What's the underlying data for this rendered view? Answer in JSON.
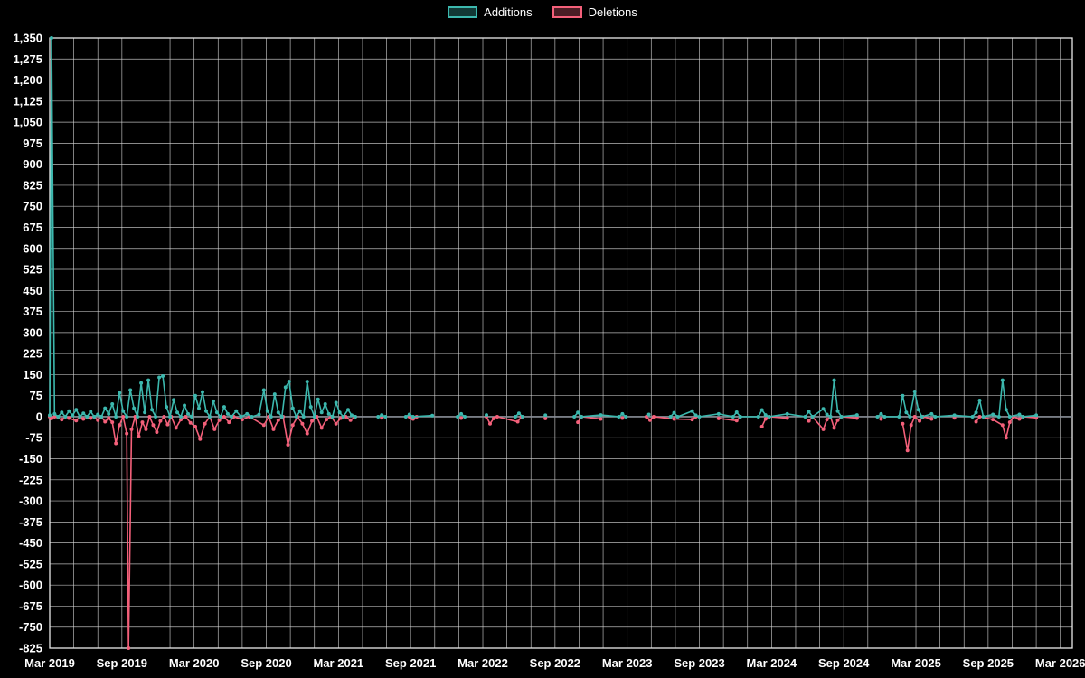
{
  "legend": {
    "additions_label": "Additions",
    "deletions_label": "Deletions"
  },
  "colors": {
    "background": "#000000",
    "grid": "#d7d7d7",
    "border": "#e9e9e9",
    "zero_axis": "#8a8f98",
    "text": "#ffffff",
    "additions": "#3cb8ae",
    "deletions": "#f4607a"
  },
  "chart_data": {
    "type": "line",
    "title": "",
    "xlabel": "",
    "ylabel": "",
    "x_unit": "months since Mar 2019",
    "xlim": [
      0,
      85
    ],
    "ylim": [
      -825,
      1350
    ],
    "y_tick_values": [
      1350,
      1275,
      1200,
      1125,
      1050,
      975,
      900,
      825,
      750,
      675,
      600,
      525,
      450,
      375,
      300,
      225,
      150,
      75,
      0,
      -75,
      -150,
      -225,
      -300,
      -375,
      -450,
      -525,
      -600,
      -675,
      -750,
      -825
    ],
    "x_tick_months": [
      0,
      6,
      12,
      18,
      24,
      30,
      36,
      42,
      48,
      54,
      60,
      66,
      72,
      78,
      84
    ],
    "x_tick_labels": [
      "Mar 2019",
      "Sep 2019",
      "Mar 2020",
      "Sep 2020",
      "Mar 2021",
      "Sep 2021",
      "Mar 2022",
      "Sep 2022",
      "Mar 2023",
      "Sep 2023",
      "Mar 2024",
      "Sep 2024",
      "Mar 2025",
      "Sep 2025",
      "Mar 2026"
    ],
    "x_grid_step_months": 2,
    "grid": true,
    "legend_position": "top-center",
    "gap_threshold_months": 1.7,
    "series": [
      {
        "name": "Additions",
        "color": "#3cb8ae",
        "points": [
          [
            0.0,
            5
          ],
          [
            0.15,
            1350
          ],
          [
            0.4,
            10
          ],
          [
            0.7,
            0
          ],
          [
            1.0,
            15
          ],
          [
            1.3,
            0
          ],
          [
            1.6,
            20
          ],
          [
            1.9,
            5
          ],
          [
            2.2,
            25
          ],
          [
            2.5,
            0
          ],
          [
            2.8,
            12
          ],
          [
            3.1,
            0
          ],
          [
            3.4,
            18
          ],
          [
            3.7,
            0
          ],
          [
            4.0,
            8
          ],
          [
            4.3,
            0
          ],
          [
            4.6,
            30
          ],
          [
            4.9,
            10
          ],
          [
            5.2,
            45
          ],
          [
            5.5,
            0
          ],
          [
            5.8,
            85
          ],
          [
            6.1,
            20
          ],
          [
            6.4,
            0
          ],
          [
            6.7,
            95
          ],
          [
            7.0,
            30
          ],
          [
            7.3,
            0
          ],
          [
            7.6,
            120
          ],
          [
            7.9,
            15
          ],
          [
            8.2,
            130
          ],
          [
            8.5,
            25
          ],
          [
            8.8,
            0
          ],
          [
            9.1,
            140
          ],
          [
            9.4,
            145
          ],
          [
            9.7,
            35
          ],
          [
            10.0,
            0
          ],
          [
            10.3,
            60
          ],
          [
            10.6,
            15
          ],
          [
            10.9,
            0
          ],
          [
            11.2,
            40
          ],
          [
            11.5,
            10
          ],
          [
            11.8,
            0
          ],
          [
            12.1,
            75
          ],
          [
            12.4,
            30
          ],
          [
            12.7,
            88
          ],
          [
            13.0,
            20
          ],
          [
            13.3,
            0
          ],
          [
            13.6,
            55
          ],
          [
            13.9,
            15
          ],
          [
            14.2,
            0
          ],
          [
            14.5,
            35
          ],
          [
            14.8,
            10
          ],
          [
            15.1,
            0
          ],
          [
            15.5,
            20
          ],
          [
            15.9,
            0
          ],
          [
            16.4,
            10
          ],
          [
            16.8,
            0
          ],
          [
            17.4,
            8
          ],
          [
            17.8,
            95
          ],
          [
            18.1,
            20
          ],
          [
            18.4,
            0
          ],
          [
            18.7,
            80
          ],
          [
            19.0,
            15
          ],
          [
            19.3,
            0
          ],
          [
            19.6,
            105
          ],
          [
            19.9,
            125
          ],
          [
            20.2,
            30
          ],
          [
            20.5,
            0
          ],
          [
            20.8,
            20
          ],
          [
            21.1,
            0
          ],
          [
            21.4,
            125
          ],
          [
            21.7,
            35
          ],
          [
            22.0,
            0
          ],
          [
            22.3,
            62
          ],
          [
            22.6,
            15
          ],
          [
            22.9,
            45
          ],
          [
            23.2,
            10
          ],
          [
            23.5,
            0
          ],
          [
            23.8,
            50
          ],
          [
            24.1,
            15
          ],
          [
            24.4,
            0
          ],
          [
            24.8,
            25
          ],
          [
            25.1,
            5
          ],
          [
            25.4,
            0
          ],
          [
            27.3,
            0
          ],
          [
            27.6,
            6
          ],
          [
            27.9,
            0
          ],
          [
            29.6,
            0
          ],
          [
            29.9,
            8
          ],
          [
            30.2,
            0
          ],
          [
            31.8,
            4
          ],
          [
            33.9,
            0
          ],
          [
            34.2,
            10
          ],
          [
            34.5,
            0
          ],
          [
            36.3,
            6
          ],
          [
            38.7,
            0
          ],
          [
            39.0,
            12
          ],
          [
            39.3,
            0
          ],
          [
            41.2,
            5
          ],
          [
            43.6,
            0
          ],
          [
            43.9,
            15
          ],
          [
            44.2,
            0
          ],
          [
            45.8,
            6
          ],
          [
            47.3,
            0
          ],
          [
            47.6,
            10
          ],
          [
            47.9,
            0
          ],
          [
            49.8,
            8
          ],
          [
            51.6,
            0
          ],
          [
            51.9,
            14
          ],
          [
            52.2,
            0
          ],
          [
            53.4,
            20
          ],
          [
            53.7,
            5
          ],
          [
            54.0,
            0
          ],
          [
            55.6,
            10
          ],
          [
            56.8,
            0
          ],
          [
            57.1,
            16
          ],
          [
            57.4,
            0
          ],
          [
            58.9,
            0
          ],
          [
            59.2,
            24
          ],
          [
            59.5,
            6
          ],
          [
            59.8,
            0
          ],
          [
            61.3,
            10
          ],
          [
            62.8,
            0
          ],
          [
            63.1,
            18
          ],
          [
            63.4,
            0
          ],
          [
            64.3,
            28
          ],
          [
            64.6,
            8
          ],
          [
            64.9,
            0
          ],
          [
            65.2,
            130
          ],
          [
            65.5,
            20
          ],
          [
            65.8,
            0
          ],
          [
            67.1,
            6
          ],
          [
            68.8,
            0
          ],
          [
            69.1,
            10
          ],
          [
            69.4,
            0
          ],
          [
            70.6,
            0
          ],
          [
            70.9,
            75
          ],
          [
            71.2,
            15
          ],
          [
            71.5,
            0
          ],
          [
            71.9,
            90
          ],
          [
            72.2,
            25
          ],
          [
            72.5,
            0
          ],
          [
            73.3,
            10
          ],
          [
            73.6,
            0
          ],
          [
            75.2,
            5
          ],
          [
            76.7,
            0
          ],
          [
            77.0,
            15
          ],
          [
            77.3,
            58
          ],
          [
            77.6,
            0
          ],
          [
            78.4,
            8
          ],
          [
            78.9,
            0
          ],
          [
            79.2,
            130
          ],
          [
            79.5,
            25
          ],
          [
            79.8,
            0
          ],
          [
            80.6,
            8
          ],
          [
            80.9,
            0
          ],
          [
            82.0,
            5
          ]
        ]
      },
      {
        "name": "Deletions",
        "color": "#f4607a",
        "points": [
          [
            0.0,
            0
          ],
          [
            0.15,
            -6
          ],
          [
            0.4,
            0
          ],
          [
            1.0,
            -10
          ],
          [
            1.3,
            0
          ],
          [
            1.6,
            -5
          ],
          [
            2.2,
            -14
          ],
          [
            2.5,
            0
          ],
          [
            2.8,
            -8
          ],
          [
            3.4,
            -5
          ],
          [
            3.7,
            0
          ],
          [
            4.0,
            -12
          ],
          [
            4.3,
            0
          ],
          [
            4.6,
            -18
          ],
          [
            4.9,
            -5
          ],
          [
            5.2,
            -20
          ],
          [
            5.5,
            -95
          ],
          [
            5.8,
            -30
          ],
          [
            6.1,
            0
          ],
          [
            6.4,
            -60
          ],
          [
            6.55,
            -825
          ],
          [
            6.8,
            -45
          ],
          [
            7.1,
            0
          ],
          [
            7.4,
            -70
          ],
          [
            7.7,
            -20
          ],
          [
            8.0,
            -45
          ],
          [
            8.3,
            0
          ],
          [
            8.6,
            -30
          ],
          [
            8.9,
            -55
          ],
          [
            9.2,
            -15
          ],
          [
            9.5,
            0
          ],
          [
            9.8,
            -28
          ],
          [
            10.1,
            0
          ],
          [
            10.5,
            -40
          ],
          [
            10.9,
            -10
          ],
          [
            11.3,
            0
          ],
          [
            11.7,
            -22
          ],
          [
            12.1,
            -35
          ],
          [
            12.5,
            -80
          ],
          [
            12.9,
            -25
          ],
          [
            13.3,
            0
          ],
          [
            13.7,
            -45
          ],
          [
            14.1,
            -12
          ],
          [
            14.5,
            0
          ],
          [
            14.9,
            -20
          ],
          [
            15.3,
            0
          ],
          [
            16.0,
            -10
          ],
          [
            16.6,
            0
          ],
          [
            17.8,
            -30
          ],
          [
            18.2,
            0
          ],
          [
            18.6,
            -45
          ],
          [
            19.0,
            -12
          ],
          [
            19.4,
            0
          ],
          [
            19.8,
            -100
          ],
          [
            20.2,
            -30
          ],
          [
            20.6,
            0
          ],
          [
            21.0,
            -25
          ],
          [
            21.4,
            -60
          ],
          [
            21.8,
            -15
          ],
          [
            22.2,
            0
          ],
          [
            22.6,
            -40
          ],
          [
            23.0,
            -10
          ],
          [
            23.4,
            0
          ],
          [
            23.8,
            -25
          ],
          [
            24.2,
            -5
          ],
          [
            24.6,
            0
          ],
          [
            25.0,
            -12
          ],
          [
            25.4,
            0
          ],
          [
            27.6,
            -4
          ],
          [
            29.9,
            0
          ],
          [
            30.2,
            -8
          ],
          [
            30.5,
            0
          ],
          [
            34.2,
            -5
          ],
          [
            36.3,
            0
          ],
          [
            36.6,
            -25
          ],
          [
            36.9,
            -6
          ],
          [
            37.2,
            0
          ],
          [
            38.9,
            -18
          ],
          [
            39.2,
            0
          ],
          [
            41.2,
            -6
          ],
          [
            43.9,
            -20
          ],
          [
            44.2,
            0
          ],
          [
            45.8,
            -8
          ],
          [
            47.6,
            -5
          ],
          [
            49.6,
            0
          ],
          [
            49.9,
            -12
          ],
          [
            50.2,
            0
          ],
          [
            51.9,
            -8
          ],
          [
            53.4,
            -10
          ],
          [
            53.7,
            0
          ],
          [
            55.6,
            -6
          ],
          [
            57.1,
            -14
          ],
          [
            57.4,
            0
          ],
          [
            59.2,
            -35
          ],
          [
            59.5,
            -8
          ],
          [
            59.8,
            0
          ],
          [
            61.3,
            -5
          ],
          [
            63.1,
            -15
          ],
          [
            63.4,
            0
          ],
          [
            64.3,
            -45
          ],
          [
            64.6,
            -10
          ],
          [
            64.9,
            0
          ],
          [
            65.2,
            -40
          ],
          [
            65.5,
            -12
          ],
          [
            65.8,
            0
          ],
          [
            67.1,
            -5
          ],
          [
            69.1,
            -8
          ],
          [
            70.9,
            -25
          ],
          [
            71.3,
            -120
          ],
          [
            71.6,
            -30
          ],
          [
            71.9,
            0
          ],
          [
            72.3,
            -15
          ],
          [
            72.6,
            0
          ],
          [
            73.3,
            -8
          ],
          [
            75.2,
            -4
          ],
          [
            77.0,
            -18
          ],
          [
            77.3,
            0
          ],
          [
            78.4,
            -10
          ],
          [
            79.2,
            -30
          ],
          [
            79.5,
            -75
          ],
          [
            79.8,
            -20
          ],
          [
            80.1,
            0
          ],
          [
            80.6,
            -8
          ],
          [
            80.9,
            0
          ],
          [
            82.0,
            -4
          ]
        ]
      }
    ]
  }
}
